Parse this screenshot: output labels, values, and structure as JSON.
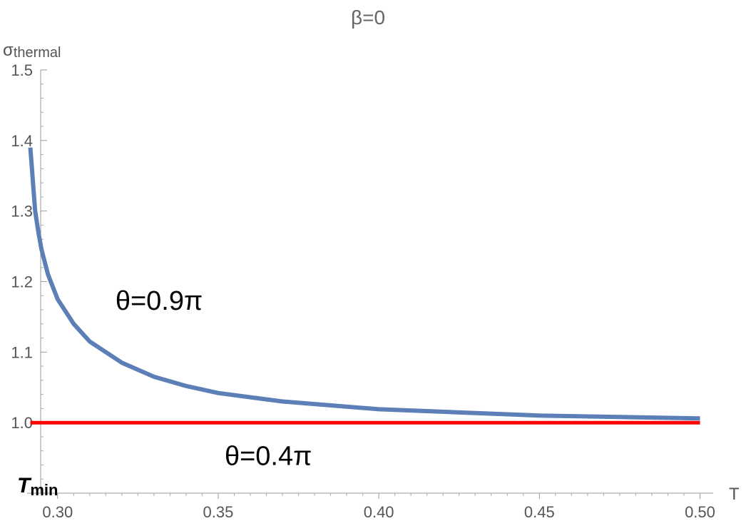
{
  "chart_data": {
    "type": "line",
    "title": "β=0",
    "xlabel": "T",
    "ylabel_main": "σ",
    "ylabel_sub": "thermal",
    "xlim": [
      0.2905,
      0.505
    ],
    "ylim": [
      0.9,
      1.5
    ],
    "x_ticks": [
      0.3,
      0.35,
      0.4,
      0.45,
      0.5
    ],
    "x_tick_labels": [
      "0.30",
      "0.35",
      "0.40",
      "0.45",
      "0.50"
    ],
    "y_ticks": [
      1.0,
      1.1,
      1.2,
      1.3,
      1.4,
      1.5
    ],
    "y_tick_labels": [
      "1.0",
      "1.1",
      "1.2",
      "1.3",
      "1.4",
      "1.5"
    ],
    "grid": false,
    "series": [
      {
        "name": "θ=0.9π",
        "color": "#5b7fb6",
        "x": [
          0.2915,
          0.292,
          0.2925,
          0.293,
          0.294,
          0.295,
          0.297,
          0.3,
          0.305,
          0.31,
          0.32,
          0.33,
          0.34,
          0.35,
          0.37,
          0.4,
          0.45,
          0.5
        ],
        "y": [
          1.39,
          1.36,
          1.33,
          1.3,
          1.27,
          1.245,
          1.21,
          1.175,
          1.14,
          1.115,
          1.085,
          1.065,
          1.052,
          1.042,
          1.03,
          1.019,
          1.01,
          1.006
        ]
      },
      {
        "name": "θ=0.4π",
        "color": "#ff0000",
        "x": [
          0.2915,
          0.5
        ],
        "y": [
          1.0,
          1.0
        ]
      }
    ],
    "annotations": [
      {
        "text": "θ=0.9π",
        "x": 0.318,
        "y": 1.16
      },
      {
        "text": "θ=0.4π",
        "x": 0.352,
        "y": 0.94
      }
    ],
    "marker_label": {
      "main": "T",
      "sub": "min"
    }
  }
}
